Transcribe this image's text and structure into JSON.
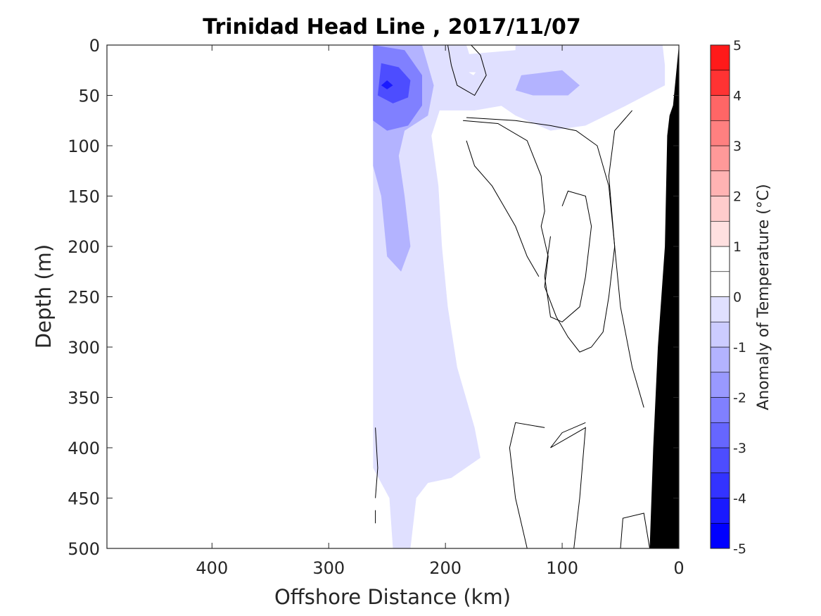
{
  "chart_data": {
    "type": "heatmap",
    "title": "Trinidad Head Line , 2017/11/07",
    "xlabel": "Offshore Distance (km)",
    "ylabel": "Depth (m)",
    "xlim": [
      490,
      0
    ],
    "ylim": [
      0,
      500
    ],
    "x_reversed": true,
    "y_reversed": true,
    "xticks": [
      400,
      300,
      200,
      100,
      0
    ],
    "yticks": [
      0,
      50,
      100,
      150,
      200,
      250,
      300,
      350,
      400,
      450,
      500
    ],
    "grid": false,
    "colorbar": {
      "label": "Anomaly of Temperature (°C)",
      "range": [
        -5,
        5
      ],
      "ticks": [
        -5,
        -4,
        -3,
        -2,
        -1,
        0,
        1,
        2,
        3,
        4,
        5
      ],
      "levels": [
        -5,
        -4.5,
        -4,
        -3.5,
        -3,
        -2.5,
        -2,
        -1.5,
        -1,
        -0.5,
        0,
        0.5,
        1,
        1.5,
        2,
        2.5,
        3,
        3.5,
        4,
        4.5,
        5
      ],
      "colors": [
        "#0000ff",
        "#1a1aff",
        "#3333ff",
        "#4d4dff",
        "#6666ff",
        "#8080ff",
        "#9999ff",
        "#b3b3ff",
        "#ccccff",
        "#e0e0ff",
        "#ffffff",
        "#ffffff",
        "#ffe0e0",
        "#ffcccc",
        "#ffb3b3",
        "#ff9999",
        "#ff8080",
        "#ff6666",
        "#ff3333",
        "#ff1a1a"
      ]
    },
    "anomaly_regions": [
      {
        "name": "cold-column",
        "level": -0.5,
        "points": [
          [
            262,
            0
          ],
          [
            182,
            0
          ],
          [
            178,
            15
          ],
          [
            160,
            45
          ],
          [
            150,
            60
          ],
          [
            175,
            65
          ],
          [
            205,
            65
          ],
          [
            212,
            90
          ],
          [
            206,
            140
          ],
          [
            203,
            200
          ],
          [
            198,
            260
          ],
          [
            190,
            320
          ],
          [
            175,
            380
          ],
          [
            170,
            410
          ],
          [
            195,
            430
          ],
          [
            215,
            435
          ],
          [
            225,
            450
          ],
          [
            230,
            500
          ],
          [
            245,
            500
          ],
          [
            248,
            450
          ],
          [
            262,
            420
          ]
        ]
      },
      {
        "name": "cold-surface-band",
        "level": -0.5,
        "points": [
          [
            140,
            0
          ],
          [
            14,
            0
          ],
          [
            12,
            20
          ],
          [
            12,
            40
          ],
          [
            45,
            60
          ],
          [
            80,
            80
          ],
          [
            110,
            85
          ],
          [
            140,
            70
          ],
          [
            165,
            50
          ],
          [
            178,
            38
          ],
          [
            185,
            28
          ],
          [
            190,
            10
          ],
          [
            140,
            5
          ]
        ]
      },
      {
        "name": "cold-core-1",
        "level": -1.5,
        "points": [
          [
            262,
            0
          ],
          [
            220,
            0
          ],
          [
            210,
            40
          ],
          [
            215,
            70
          ],
          [
            235,
            85
          ],
          [
            240,
            110
          ],
          [
            235,
            150
          ],
          [
            230,
            200
          ],
          [
            238,
            225
          ],
          [
            250,
            210
          ],
          [
            255,
            150
          ],
          [
            262,
            120
          ]
        ]
      },
      {
        "name": "cold-core-2",
        "level": -2.5,
        "points": [
          [
            262,
            0
          ],
          [
            235,
            5
          ],
          [
            220,
            30
          ],
          [
            220,
            60
          ],
          [
            232,
            80
          ],
          [
            250,
            85
          ],
          [
            262,
            75
          ]
        ]
      },
      {
        "name": "cold-core-3",
        "level": -3.5,
        "points": [
          [
            255,
            18
          ],
          [
            240,
            22
          ],
          [
            230,
            35
          ],
          [
            232,
            52
          ],
          [
            245,
            58
          ],
          [
            258,
            50
          ]
        ]
      },
      {
        "name": "cold-core-4",
        "level": -4.5,
        "points": [
          [
            250,
            35
          ],
          [
            245,
            40
          ],
          [
            250,
            44
          ],
          [
            255,
            40
          ]
        ]
      },
      {
        "name": "cold-band-core",
        "level": -1.5,
        "points": [
          [
            135,
            30
          ],
          [
            100,
            25
          ],
          [
            85,
            40
          ],
          [
            95,
            50
          ],
          [
            125,
            50
          ],
          [
            140,
            45
          ]
        ]
      },
      {
        "name": "warm-shelf",
        "level": 0.5,
        "points": [
          [
            35,
            90
          ],
          [
            25,
            110
          ],
          [
            30,
            150
          ],
          [
            35,
            230
          ],
          [
            35,
            290
          ],
          [
            25,
            300
          ],
          [
            20,
            290
          ],
          [
            22,
            150
          ]
        ]
      },
      {
        "name": "warm-spot",
        "level": 0.5,
        "points": [
          [
            180,
            27
          ],
          [
            174,
            27
          ],
          [
            176,
            30
          ]
        ]
      }
    ],
    "zero_contours": [
      [
        [
          198,
          0
        ],
        [
          195,
          20
        ],
        [
          190,
          40
        ],
        [
          175,
          50
        ],
        [
          165,
          30
        ],
        [
          170,
          10
        ],
        [
          178,
          0
        ]
      ],
      [
        [
          185,
          75
        ],
        [
          155,
          78
        ],
        [
          130,
          95
        ],
        [
          118,
          130
        ],
        [
          115,
          165
        ],
        [
          118,
          180
        ],
        [
          112,
          210
        ],
        [
          115,
          240
        ],
        [
          105,
          270
        ],
        [
          95,
          290
        ],
        [
          85,
          305
        ],
        [
          75,
          300
        ],
        [
          65,
          285
        ],
        [
          60,
          250
        ],
        [
          55,
          200
        ],
        [
          60,
          140
        ],
        [
          70,
          100
        ],
        [
          88,
          85
        ],
        [
          110,
          80
        ],
        [
          140,
          75
        ],
        [
          182,
          72
        ]
      ],
      [
        [
          120,
          230
        ],
        [
          130,
          210
        ],
        [
          140,
          180
        ],
        [
          150,
          160
        ],
        [
          160,
          140
        ],
        [
          175,
          120
        ],
        [
          182,
          95
        ]
      ],
      [
        [
          100,
          160
        ],
        [
          95,
          145
        ],
        [
          80,
          150
        ],
        [
          75,
          180
        ],
        [
          80,
          230
        ],
        [
          85,
          260
        ],
        [
          100,
          275
        ],
        [
          110,
          270
        ],
        [
          115,
          230
        ],
        [
          110,
          190
        ]
      ],
      [
        [
          115,
          380
        ],
        [
          140,
          375
        ],
        [
          145,
          400
        ],
        [
          140,
          450
        ],
        [
          130,
          500
        ]
      ],
      [
        [
          80,
          375
        ],
        [
          100,
          385
        ],
        [
          110,
          400
        ],
        [
          80,
          380
        ],
        [
          85,
          450
        ],
        [
          90,
          500
        ]
      ],
      [
        [
          40,
          65
        ],
        [
          55,
          85
        ],
        [
          60,
          130
        ],
        [
          55,
          200
        ],
        [
          50,
          260
        ],
        [
          40,
          320
        ],
        [
          30,
          360
        ]
      ],
      [
        [
          260,
          380
        ],
        [
          258,
          420
        ],
        [
          260,
          450
        ]
      ],
      [
        [
          260,
          462
        ],
        [
          260,
          475
        ]
      ],
      [
        [
          50,
          500
        ],
        [
          48,
          470
        ],
        [
          30,
          465
        ],
        [
          25,
          500
        ]
      ]
    ],
    "bathymetry": {
      "color": "#000000",
      "points": [
        [
          0,
          0
        ],
        [
          5,
          60
        ],
        [
          8,
          70
        ],
        [
          10,
          90
        ],
        [
          12,
          200
        ],
        [
          18,
          300
        ],
        [
          22,
          400
        ],
        [
          25,
          500
        ],
        [
          0,
          500
        ]
      ]
    }
  }
}
